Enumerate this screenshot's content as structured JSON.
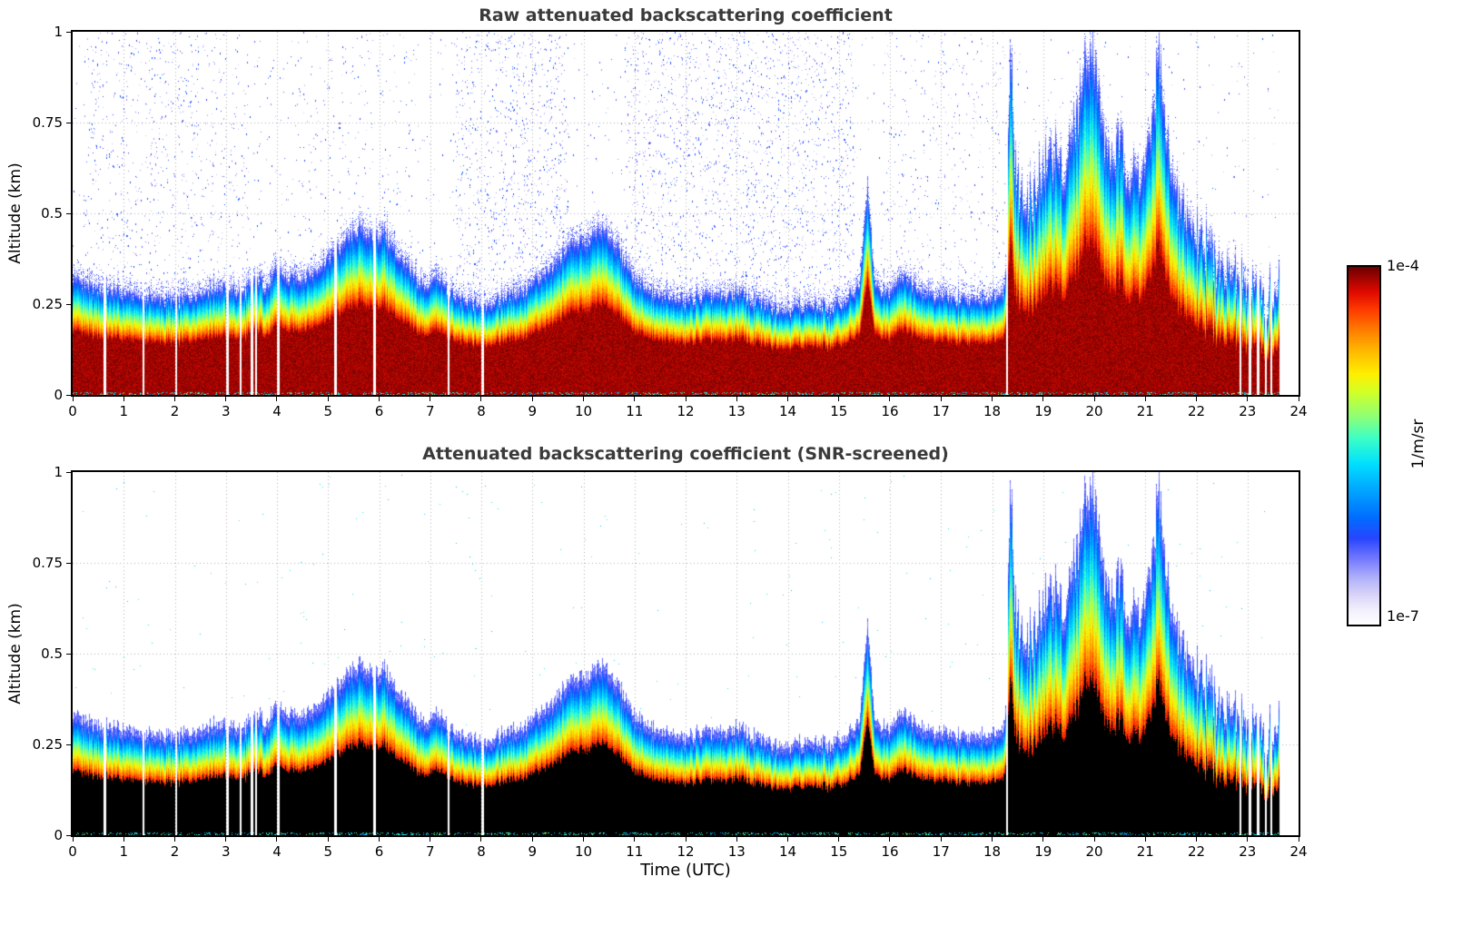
{
  "figure": {
    "panels": [
      {
        "title": "Raw attenuated backscattering coefficient"
      },
      {
        "title": "Attenuated backscattering coefficient (SNR-screened)"
      }
    ],
    "xlabel": "Time (UTC)",
    "ylabel": "Altitude (km)",
    "colorbar": {
      "max_label": "1e-4",
      "min_label": "1e-7",
      "units": "1/m/sr"
    }
  },
  "chart_data": {
    "type": "heatmap",
    "x_variable": "Time (UTC)",
    "y_variable": "Altitude (km)",
    "x_range": [
      0,
      24
    ],
    "y_range": [
      0,
      1
    ],
    "x_ticks": [
      0,
      1,
      2,
      3,
      4,
      5,
      6,
      7,
      8,
      9,
      10,
      11,
      12,
      13,
      14,
      15,
      16,
      17,
      18,
      19,
      20,
      21,
      22,
      23,
      24
    ],
    "y_ticks": [
      0,
      0.25,
      0.5,
      0.75,
      1
    ],
    "value_scale": "log",
    "value_range_labels": [
      "1e-7",
      "1e-4"
    ],
    "units": "1/m/sr",
    "colormap": "jet-like (white -> blue -> cyan -> green -> yellow -> orange -> dark red)",
    "grid": "dotted gray at every hour and every 0.25 km",
    "legend_position": "colorbar right, vertical",
    "panels": [
      {
        "title": "Raw attenuated backscattering coefficient",
        "snr_screened": false,
        "description": "strong near-surface aerosol layer (dark red below ~0.2 km) with blue noise speckle filling the region above the layer"
      },
      {
        "title": "Attenuated backscattering coefficient (SNR-screened)",
        "snr_screened": true,
        "description": "same field with noise removed; saturated near-surface core renders black, sharp blue layer top edge"
      }
    ],
    "aerosol_layer_top_km": {
      "t": [
        0.0,
        0.3,
        0.7,
        1.0,
        1.5,
        2.0,
        2.5,
        3.0,
        3.3,
        3.6,
        3.8,
        4.0,
        4.2,
        4.5,
        4.8,
        5.0,
        5.3,
        5.6,
        5.9,
        6.1,
        6.3,
        6.6,
        6.9,
        7.1,
        7.3,
        7.6,
        8.0,
        8.4,
        8.8,
        9.2,
        9.5,
        9.8,
        10.0,
        10.3,
        10.5,
        10.7,
        11.0,
        11.3,
        11.6,
        12.0,
        12.4,
        12.7,
        13.0,
        13.3,
        13.6,
        14.0,
        14.4,
        14.8,
        15.1,
        15.4,
        15.55,
        15.7,
        16.0,
        16.2,
        16.5,
        16.8,
        17.1,
        17.5,
        17.9,
        18.1,
        18.25,
        18.35,
        18.45,
        18.6,
        18.8,
        19.0,
        19.2,
        19.4,
        19.6,
        19.8,
        19.95,
        20.1,
        20.3,
        20.5,
        20.7,
        20.9,
        21.1,
        21.25,
        21.4,
        21.6,
        21.9,
        22.2,
        22.5,
        22.8,
        23.1,
        23.35,
        23.6
      ],
      "h": [
        0.33,
        0.3,
        0.29,
        0.28,
        0.27,
        0.26,
        0.29,
        0.3,
        0.28,
        0.33,
        0.3,
        0.35,
        0.32,
        0.33,
        0.35,
        0.38,
        0.42,
        0.46,
        0.44,
        0.45,
        0.4,
        0.34,
        0.3,
        0.33,
        0.3,
        0.26,
        0.25,
        0.27,
        0.29,
        0.33,
        0.38,
        0.43,
        0.42,
        0.46,
        0.44,
        0.4,
        0.32,
        0.29,
        0.27,
        0.26,
        0.28,
        0.27,
        0.29,
        0.26,
        0.25,
        0.24,
        0.25,
        0.24,
        0.26,
        0.3,
        0.58,
        0.3,
        0.28,
        0.34,
        0.3,
        0.28,
        0.27,
        0.26,
        0.27,
        0.28,
        0.3,
        1.0,
        0.6,
        0.52,
        0.55,
        0.62,
        0.68,
        0.6,
        0.75,
        0.9,
        1.0,
        0.8,
        0.65,
        0.7,
        0.6,
        0.62,
        0.7,
        0.95,
        0.7,
        0.55,
        0.48,
        0.42,
        0.36,
        0.32,
        0.3,
        0.28,
        0.28
      ]
    },
    "data_end_time": 23.62,
    "data_gaps": [
      [
        0.6,
        0.64
      ],
      [
        1.36,
        1.4
      ],
      [
        2.0,
        2.04
      ],
      [
        3.0,
        3.04
      ],
      [
        3.26,
        3.3
      ],
      [
        3.48,
        3.52
      ],
      [
        3.56,
        3.6
      ],
      [
        4.0,
        4.04
      ],
      [
        5.12,
        5.16
      ],
      [
        5.88,
        5.92
      ],
      [
        7.33,
        7.37
      ],
      [
        8.0,
        8.05
      ],
      [
        18.26,
        18.31
      ],
      [
        22.83,
        22.87
      ],
      [
        23.02,
        23.06
      ],
      [
        23.18,
        23.22
      ],
      [
        23.33,
        23.37
      ],
      [
        23.44,
        23.48
      ]
    ],
    "noise_bands_raw": [
      {
        "t0": 0.2,
        "t1": 3.7,
        "p": 0.018
      },
      {
        "t0": 4.2,
        "t1": 6.7,
        "p": 0.01
      },
      {
        "t0": 7.5,
        "t1": 9.7,
        "p": 0.028
      },
      {
        "t0": 10.8,
        "t1": 15.3,
        "p": 0.028
      },
      {
        "t0": 15.8,
        "t1": 17.8,
        "p": 0.012
      },
      {
        "t0": 18.0,
        "t1": 18.3,
        "p": 0.015
      }
    ],
    "render_hints": {
      "grid_color": "#b0b0b0",
      "core_fraction": 0.55,
      "core_fraction_convective": 0.45,
      "convective_start": 18.3,
      "noise_base": 0.003,
      "screened_noise": 0.0007,
      "black_threshold_screened": 0.935,
      "colormap_stops": [
        [
          0.0,
          255,
          255,
          255
        ],
        [
          0.04,
          242,
          240,
          252
        ],
        [
          0.08,
          218,
          214,
          248
        ],
        [
          0.13,
          176,
          176,
          250
        ],
        [
          0.18,
          120,
          124,
          255
        ],
        [
          0.24,
          40,
          70,
          255
        ],
        [
          0.3,
          0,
          110,
          255
        ],
        [
          0.38,
          0,
          170,
          255
        ],
        [
          0.45,
          0,
          225,
          255
        ],
        [
          0.52,
          60,
          255,
          200
        ],
        [
          0.58,
          140,
          255,
          120
        ],
        [
          0.65,
          210,
          255,
          40
        ],
        [
          0.7,
          255,
          240,
          0
        ],
        [
          0.76,
          255,
          190,
          0
        ],
        [
          0.82,
          255,
          130,
          0
        ],
        [
          0.88,
          255,
          60,
          0
        ],
        [
          0.93,
          225,
          10,
          0
        ],
        [
          1.0,
          110,
          0,
          0
        ]
      ]
    }
  }
}
